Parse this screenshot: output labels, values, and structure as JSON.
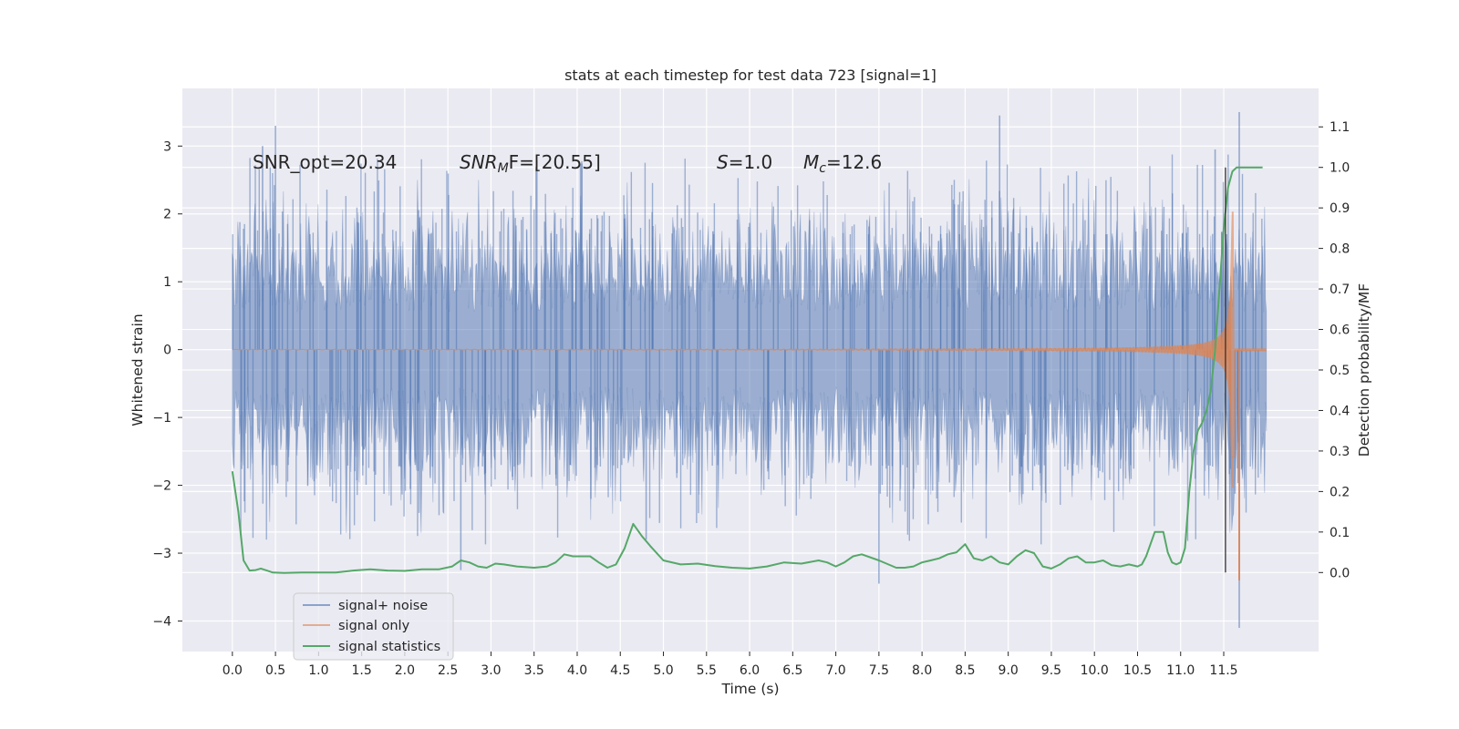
{
  "colors": {
    "plot_background": "#eaeaf2",
    "grid": "#ffffff",
    "noise": "#4c72b0",
    "signal": "#dd8452",
    "stats": "#55a868",
    "merger_line": "#333333",
    "text": "#262626"
  },
  "chart_data": {
    "type": "line",
    "title": "stats at each timestep for test data 723 [signal=1]",
    "xlabel": "Time (s)",
    "ylabel": "Whitened strain",
    "ylabel_right": "Detection probability/MF",
    "xlim": [
      -0.58,
      12.6
    ],
    "ylim": [
      -4.45,
      3.85
    ],
    "ylim_right": [
      -0.195,
      1.195
    ],
    "grid": true,
    "x_ticks": [
      0.0,
      0.5,
      1.0,
      1.5,
      2.0,
      2.5,
      3.0,
      3.5,
      4.0,
      4.5,
      5.0,
      5.5,
      6.0,
      6.5,
      7.0,
      7.5,
      8.0,
      8.5,
      9.0,
      9.5,
      10.0,
      10.5,
      11.0,
      11.5
    ],
    "x_tick_labels": [
      "0.0",
      "0.5",
      "1.0",
      "1.5",
      "2.0",
      "2.5",
      "3.0",
      "3.5",
      "4.0",
      "4.5",
      "5.0",
      "5.5",
      "6.0",
      "6.5",
      "7.0",
      "7.5",
      "8.0",
      "8.5",
      "9.0",
      "9.5",
      "10.0",
      "10.5",
      "11.0",
      "11.5"
    ],
    "y_ticks": [
      3,
      2,
      1,
      0,
      -1,
      -2,
      -3,
      -4
    ],
    "y_tick_labels": [
      "3",
      "2",
      "1",
      "0",
      "−1",
      "−2",
      "−3",
      "−4"
    ],
    "y_right_ticks": [
      1.1,
      1.0,
      0.9,
      0.8,
      0.7,
      0.6,
      0.5,
      0.4,
      0.3,
      0.2,
      0.1,
      0.0
    ],
    "y_right_tick_labels": [
      "1.1",
      "1.0",
      "0.9",
      "0.8",
      "0.7",
      "0.6",
      "0.5",
      "0.4",
      "0.3",
      "0.2",
      "0.1",
      "0.0"
    ],
    "legend_position": "lower-left",
    "annotations": {
      "snr_opt": "SNR_opt=20.34",
      "snr_mf_main": "SNR",
      "snr_mf_sub": "M",
      "snr_mf_rest": "F=[20.55]",
      "s_main": "S",
      "s_rest": "=1.0",
      "mc_main": "M",
      "mc_sub": "c",
      "mc_rest": "=12.6"
    },
    "merger_time": 11.52,
    "series": [
      {
        "name": "signal+ noise",
        "axis": "left",
        "kind": "noisy-strain",
        "x_range": [
          0.0,
          12.0
        ],
        "typical_envelope": [
          -1.8,
          1.8
        ],
        "extremes": [
          {
            "x": 0.5,
            "y": 3.3
          },
          {
            "x": 8.9,
            "y": 3.45
          },
          {
            "x": 11.68,
            "y": 3.5
          },
          {
            "x": 11.68,
            "y": -4.1
          },
          {
            "x": 7.5,
            "y": -3.45
          },
          {
            "x": 2.65,
            "y": -3.25
          },
          {
            "x": 4.8,
            "y": -2.8
          },
          {
            "x": 0.35,
            "y": 3.0
          },
          {
            "x": 11.4,
            "y": 2.95
          }
        ]
      },
      {
        "name": "signal only",
        "axis": "left",
        "kind": "chirp",
        "x_range": [
          0.0,
          12.0
        ],
        "merger_time": 11.6,
        "peak_amplitude": 3.2
      },
      {
        "name": "signal statistics",
        "axis": "right",
        "x": [
          0.0,
          0.07,
          0.13,
          0.2,
          0.27,
          0.33,
          0.4,
          0.47,
          0.6,
          0.8,
          1.0,
          1.2,
          1.4,
          1.6,
          1.8,
          2.0,
          2.2,
          2.4,
          2.55,
          2.65,
          2.75,
          2.85,
          2.95,
          3.05,
          3.15,
          3.3,
          3.5,
          3.65,
          3.75,
          3.85,
          3.95,
          4.05,
          4.15,
          4.25,
          4.35,
          4.45,
          4.55,
          4.65,
          4.75,
          4.85,
          5.0,
          5.2,
          5.4,
          5.6,
          5.8,
          6.0,
          6.2,
          6.4,
          6.6,
          6.8,
          6.9,
          7.0,
          7.1,
          7.2,
          7.3,
          7.5,
          7.7,
          7.8,
          7.9,
          8.0,
          8.1,
          8.2,
          8.3,
          8.4,
          8.45,
          8.5,
          8.6,
          8.7,
          8.8,
          8.9,
          9.0,
          9.1,
          9.2,
          9.3,
          9.4,
          9.5,
          9.6,
          9.7,
          9.8,
          9.9,
          10.0,
          10.1,
          10.2,
          10.3,
          10.4,
          10.5,
          10.55,
          10.6,
          10.7,
          10.75,
          10.8,
          10.85,
          10.9,
          10.95,
          11.0,
          11.05,
          11.1,
          11.15,
          11.2,
          11.25,
          11.3,
          11.35,
          11.4,
          11.45,
          11.5,
          11.55,
          11.6,
          11.65,
          11.7,
          11.75,
          11.8,
          11.9,
          11.95
        ],
        "values": [
          0.25,
          0.15,
          0.03,
          0.005,
          0.006,
          0.01,
          0.005,
          0.0,
          -0.001,
          0.0,
          0.0,
          0.0,
          0.005,
          0.008,
          0.005,
          0.004,
          0.008,
          0.008,
          0.015,
          0.03,
          0.025,
          0.015,
          0.012,
          0.022,
          0.02,
          0.015,
          0.012,
          0.015,
          0.025,
          0.045,
          0.04,
          0.04,
          0.04,
          0.025,
          0.012,
          0.02,
          0.06,
          0.12,
          0.09,
          0.065,
          0.03,
          0.02,
          0.022,
          0.016,
          0.012,
          0.01,
          0.015,
          0.025,
          0.022,
          0.03,
          0.025,
          0.015,
          0.025,
          0.04,
          0.045,
          0.03,
          0.012,
          0.012,
          0.015,
          0.025,
          0.03,
          0.035,
          0.045,
          0.05,
          0.06,
          0.07,
          0.035,
          0.03,
          0.04,
          0.025,
          0.02,
          0.04,
          0.055,
          0.048,
          0.015,
          0.01,
          0.02,
          0.035,
          0.04,
          0.025,
          0.025,
          0.03,
          0.018,
          0.015,
          0.02,
          0.015,
          0.02,
          0.04,
          0.1,
          0.1,
          0.1,
          0.05,
          0.025,
          0.02,
          0.025,
          0.06,
          0.2,
          0.3,
          0.35,
          0.37,
          0.4,
          0.45,
          0.55,
          0.7,
          0.85,
          0.95,
          0.99,
          1.0,
          1.0,
          1.0,
          1.0,
          1.0,
          1.0
        ]
      }
    ]
  }
}
